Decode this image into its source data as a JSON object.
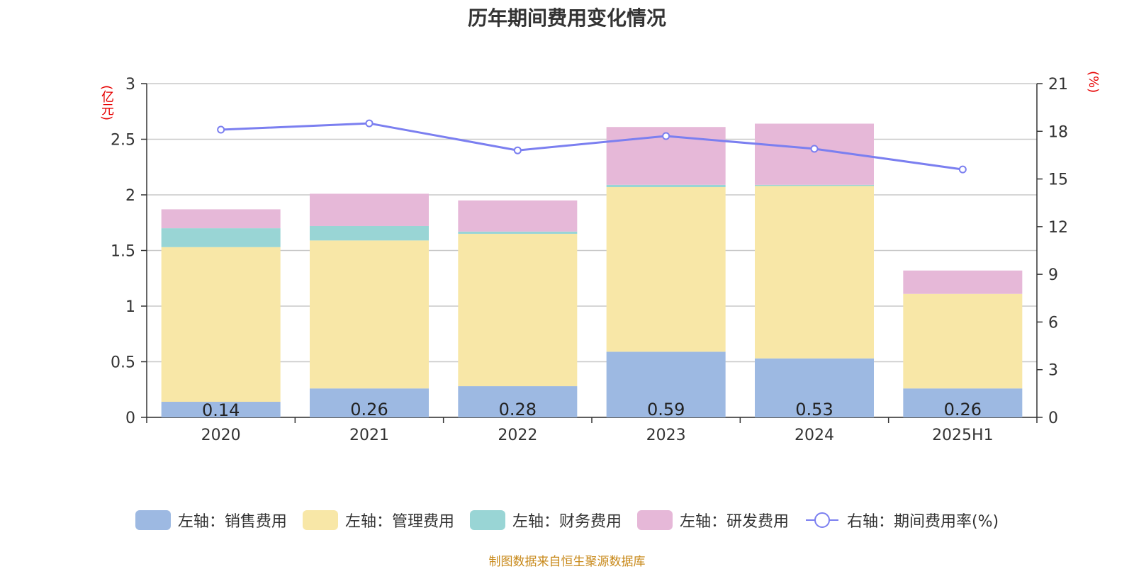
{
  "title": "历年期间费用变化情况",
  "source": "制图数据来自恒生聚源数据库",
  "left_unit": "(亿元)",
  "right_unit": "(%)",
  "legend": [
    {
      "label": "左轴：销售费用",
      "color": "#9db9e2"
    },
    {
      "label": "左轴：管理费用",
      "color": "#f8e7a7"
    },
    {
      "label": "左轴：财务费用",
      "color": "#99d5d5"
    },
    {
      "label": "左轴：研发费用",
      "color": "#e6b8d8"
    },
    {
      "label": "右轴：期间费用率(%)",
      "color": "#7b7ff0"
    }
  ],
  "chart_data": {
    "type": "bar",
    "stacked": true,
    "categories": [
      "2020",
      "2021",
      "2022",
      "2023",
      "2024",
      "2025H1"
    ],
    "series": [
      {
        "name": "左轴：销售费用",
        "axis": "left",
        "color": "#9db9e2",
        "values": [
          0.14,
          0.26,
          0.28,
          0.59,
          0.53,
          0.26
        ],
        "labels": [
          "0.14",
          "0.26",
          "0.28",
          "0.59",
          "0.53",
          "0.26"
        ]
      },
      {
        "name": "左轴：管理费用",
        "axis": "left",
        "color": "#f8e7a7",
        "values": [
          1.39,
          1.33,
          1.37,
          1.48,
          1.55,
          0.85
        ]
      },
      {
        "name": "左轴：财务费用",
        "axis": "left",
        "color": "#99d5d5",
        "values": [
          0.17,
          0.13,
          0.02,
          0.02,
          0.01,
          0.0
        ]
      },
      {
        "name": "左轴：研发费用",
        "axis": "left",
        "color": "#e6b8d8",
        "values": [
          0.17,
          0.29,
          0.28,
          0.52,
          0.55,
          0.21
        ]
      },
      {
        "name": "右轴：期间费用率(%)",
        "axis": "right",
        "type": "line",
        "color": "#7b7ff0",
        "values": [
          18.1,
          18.5,
          16.8,
          17.7,
          16.9,
          15.6
        ]
      }
    ],
    "left_axis": {
      "label": "(亿元)",
      "min": 0,
      "max": 3,
      "ticks": [
        "0",
        "0.5",
        "1",
        "1.5",
        "2",
        "2.5",
        "3"
      ]
    },
    "right_axis": {
      "label": "(%)",
      "min": 0,
      "max": 21,
      "ticks": [
        "0",
        "3",
        "6",
        "9",
        "12",
        "15",
        "18",
        "21"
      ]
    },
    "grid": true,
    "legend_position": "bottom"
  }
}
